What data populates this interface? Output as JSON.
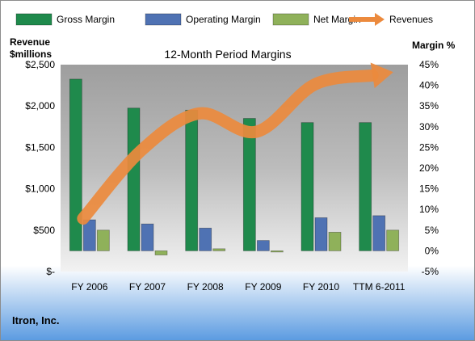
{
  "chart_data": {
    "type": "bar",
    "title": "12-Month Period Margins",
    "company": "Itron, Inc.",
    "left_axis_title_line1": "Revenue",
    "left_axis_title_line2": "$millions",
    "right_axis_title": "Margin %",
    "categories": [
      "FY 2006",
      "FY 2007",
      "FY 2008",
      "FY 2009",
      "FY 2010",
      "TTM 6-2011"
    ],
    "left_ticks": [
      "$-",
      "$500",
      "$1,000",
      "$1,500",
      "$2,000",
      "$2,500"
    ],
    "left_ylim": [
      0,
      2500
    ],
    "right_ticks": [
      "-5%",
      "0%",
      "5%",
      "10%",
      "15%",
      "20%",
      "25%",
      "30%",
      "35%",
      "40%",
      "45%"
    ],
    "right_ylim": [
      -5,
      45
    ],
    "series": [
      {
        "name": "Gross Margin",
        "axis": "right",
        "color": "#1f8a4c",
        "values": [
          41.5,
          34.5,
          34,
          32,
          31,
          31
        ]
      },
      {
        "name": "Operating Margin",
        "axis": "right",
        "color": "#4f72b3",
        "values": [
          7.5,
          6.5,
          5.5,
          2.5,
          8,
          8.5
        ]
      },
      {
        "name": "Net Margin",
        "axis": "right",
        "color": "#8fb15a",
        "values": [
          5,
          -1,
          0.5,
          -0.2,
          4.5,
          5
        ]
      },
      {
        "name": "Revenues",
        "axis": "left",
        "type": "line",
        "color": "#ec8a3d",
        "values": [
          640,
          1460,
          1910,
          1690,
          2260,
          2370
        ]
      }
    ],
    "legend_position": "top",
    "grid": false
  }
}
